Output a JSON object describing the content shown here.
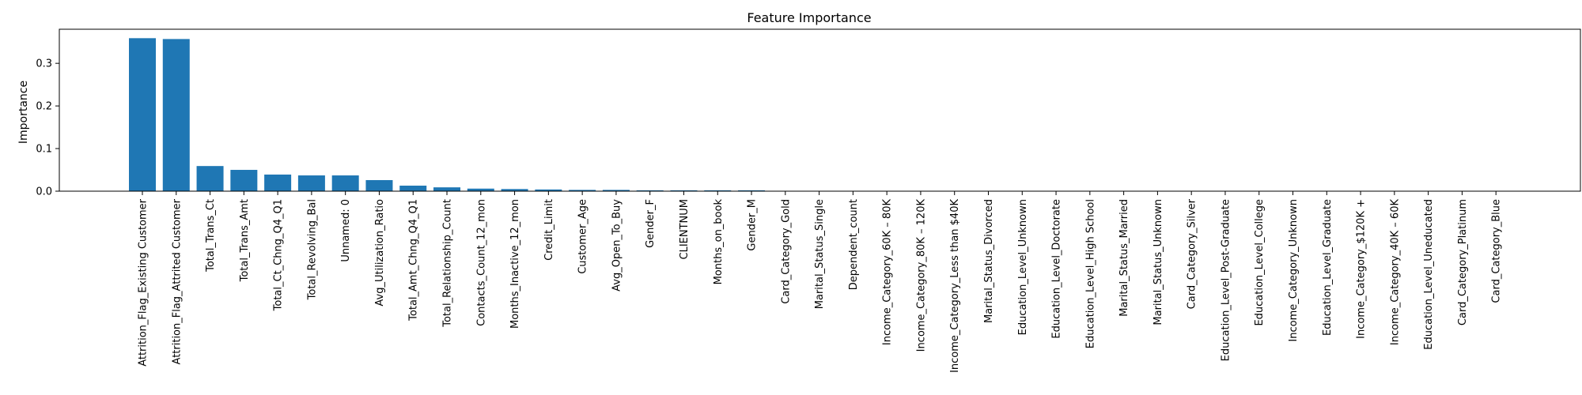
{
  "chart_data": {
    "type": "bar",
    "title": "Feature Importance",
    "xlabel": "",
    "ylabel": "Importance",
    "ylim": [
      0,
      0.38
    ],
    "yticks": [
      0.0,
      0.1,
      0.2,
      0.3
    ],
    "ytick_labels": [
      "0.0",
      "0.1",
      "0.2",
      "0.3"
    ],
    "grid": false,
    "bar_color": "#1f77b4",
    "categories": [
      "Attrition_Flag_Existing Customer",
      "Attrition_Flag_Attrited Customer",
      "Total_Trans_Ct",
      "Total_Trans_Amt",
      "Total_Ct_Chng_Q4_Q1",
      "Total_Revolving_Bal",
      "Unnamed: 0",
      "Avg_Utilization_Ratio",
      "Total_Amt_Chng_Q4_Q1",
      "Total_Relationship_Count",
      "Contacts_Count_12_mon",
      "Months_Inactive_12_mon",
      "Credit_Limit",
      "Customer_Age",
      "Avg_Open_To_Buy",
      "Gender_F",
      "CLIENTNUM",
      "Months_on_book",
      "Gender_M",
      "Card_Category_Gold",
      "Marital_Status_Single",
      "Dependent_count",
      "Income_Category_60K – 80K",
      "Income_Category_80K – 120K",
      "Income_Category_Less than $40K",
      "Marital_Status_Divorced",
      "Education_Level_Unknown",
      "Education_Level_Doctorate",
      "Education_Level_High School",
      "Marital_Status_Married",
      "Marital_Status_Unknown",
      "Card_Category_Silver",
      "Education_Level_Post-Graduate",
      "Education_Level_College",
      "Income_Category_Unknown",
      "Education_Level_Graduate",
      "Income_Category_$120K +",
      "Income_Category_40K – 60K",
      "Education_Level_Uneducated",
      "Card_Category_Platinum",
      "Card_Category_Blue"
    ],
    "values": [
      0.359,
      0.357,
      0.059,
      0.05,
      0.039,
      0.037,
      0.037,
      0.026,
      0.013,
      0.009,
      0.006,
      0.005,
      0.004,
      0.003,
      0.003,
      0.002,
      0.002,
      0.002,
      0.002,
      0.0005,
      0.0004,
      0.0003,
      0.0002,
      0.0002,
      0.0002,
      0.0002,
      0.0001,
      0.0001,
      0.0001,
      0.0001,
      0.0001,
      0.0001,
      0.0001,
      0.0001,
      0.0001,
      0.0001,
      0.0001,
      0.0001,
      0.0001,
      5e-05,
      5e-05
    ]
  }
}
